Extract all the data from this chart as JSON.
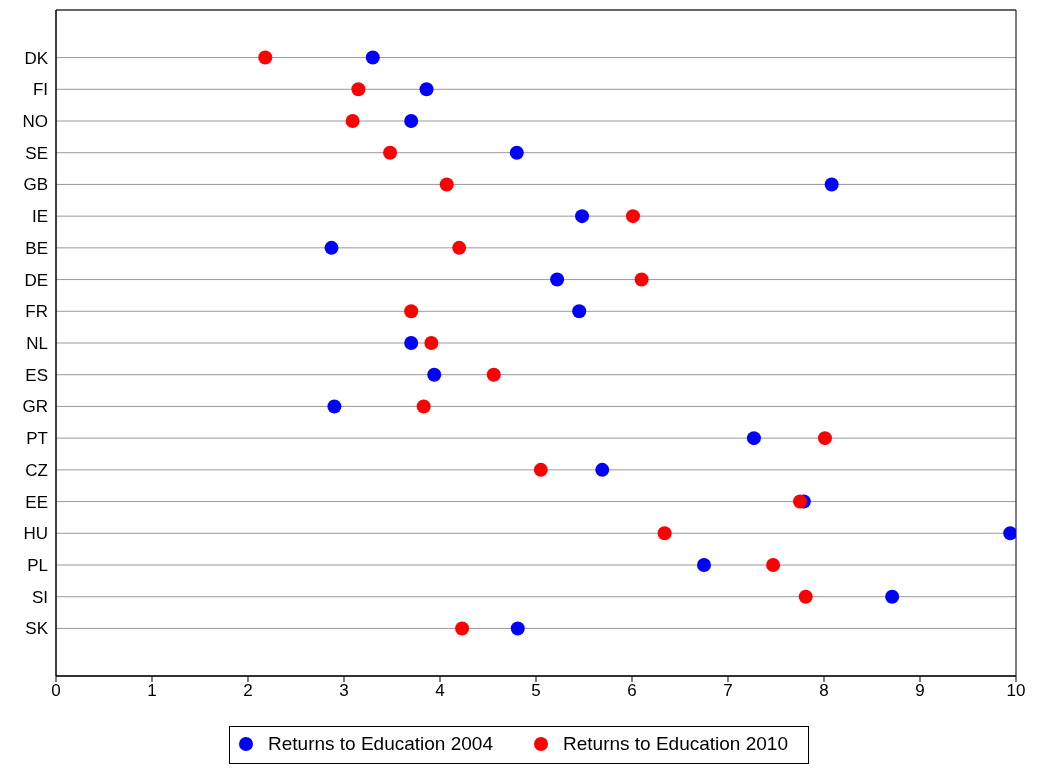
{
  "chart_data": {
    "type": "scatter",
    "orientation": "horizontal",
    "categories": [
      "DK",
      "FI",
      "NO",
      "SE",
      "GB",
      "IE",
      "BE",
      "DE",
      "FR",
      "NL",
      "ES",
      "GR",
      "PT",
      "CZ",
      "EE",
      "HU",
      "PL",
      "SI",
      "SK"
    ],
    "series": [
      {
        "name": "Returns to Education 2004",
        "color": "#0000ff",
        "values": [
          3.3,
          3.86,
          3.7,
          4.8,
          8.08,
          5.48,
          2.87,
          5.22,
          5.45,
          3.7,
          3.94,
          2.9,
          7.27,
          5.69,
          7.79,
          9.94,
          6.75,
          8.71,
          4.81
        ]
      },
      {
        "name": "Returns to Education 2010",
        "color": "#ff0000",
        "values": [
          2.18,
          3.15,
          3.09,
          3.48,
          4.07,
          6.01,
          4.2,
          6.1,
          3.7,
          3.91,
          4.56,
          3.83,
          8.01,
          5.05,
          7.75,
          6.34,
          7.47,
          7.81,
          4.23
        ]
      }
    ],
    "xlim": [
      0,
      10
    ],
    "xticks": [
      0,
      1,
      2,
      3,
      4,
      5,
      6,
      7,
      8,
      9,
      10
    ],
    "grid": "y",
    "legend": "bottom",
    "marker": "circle"
  }
}
